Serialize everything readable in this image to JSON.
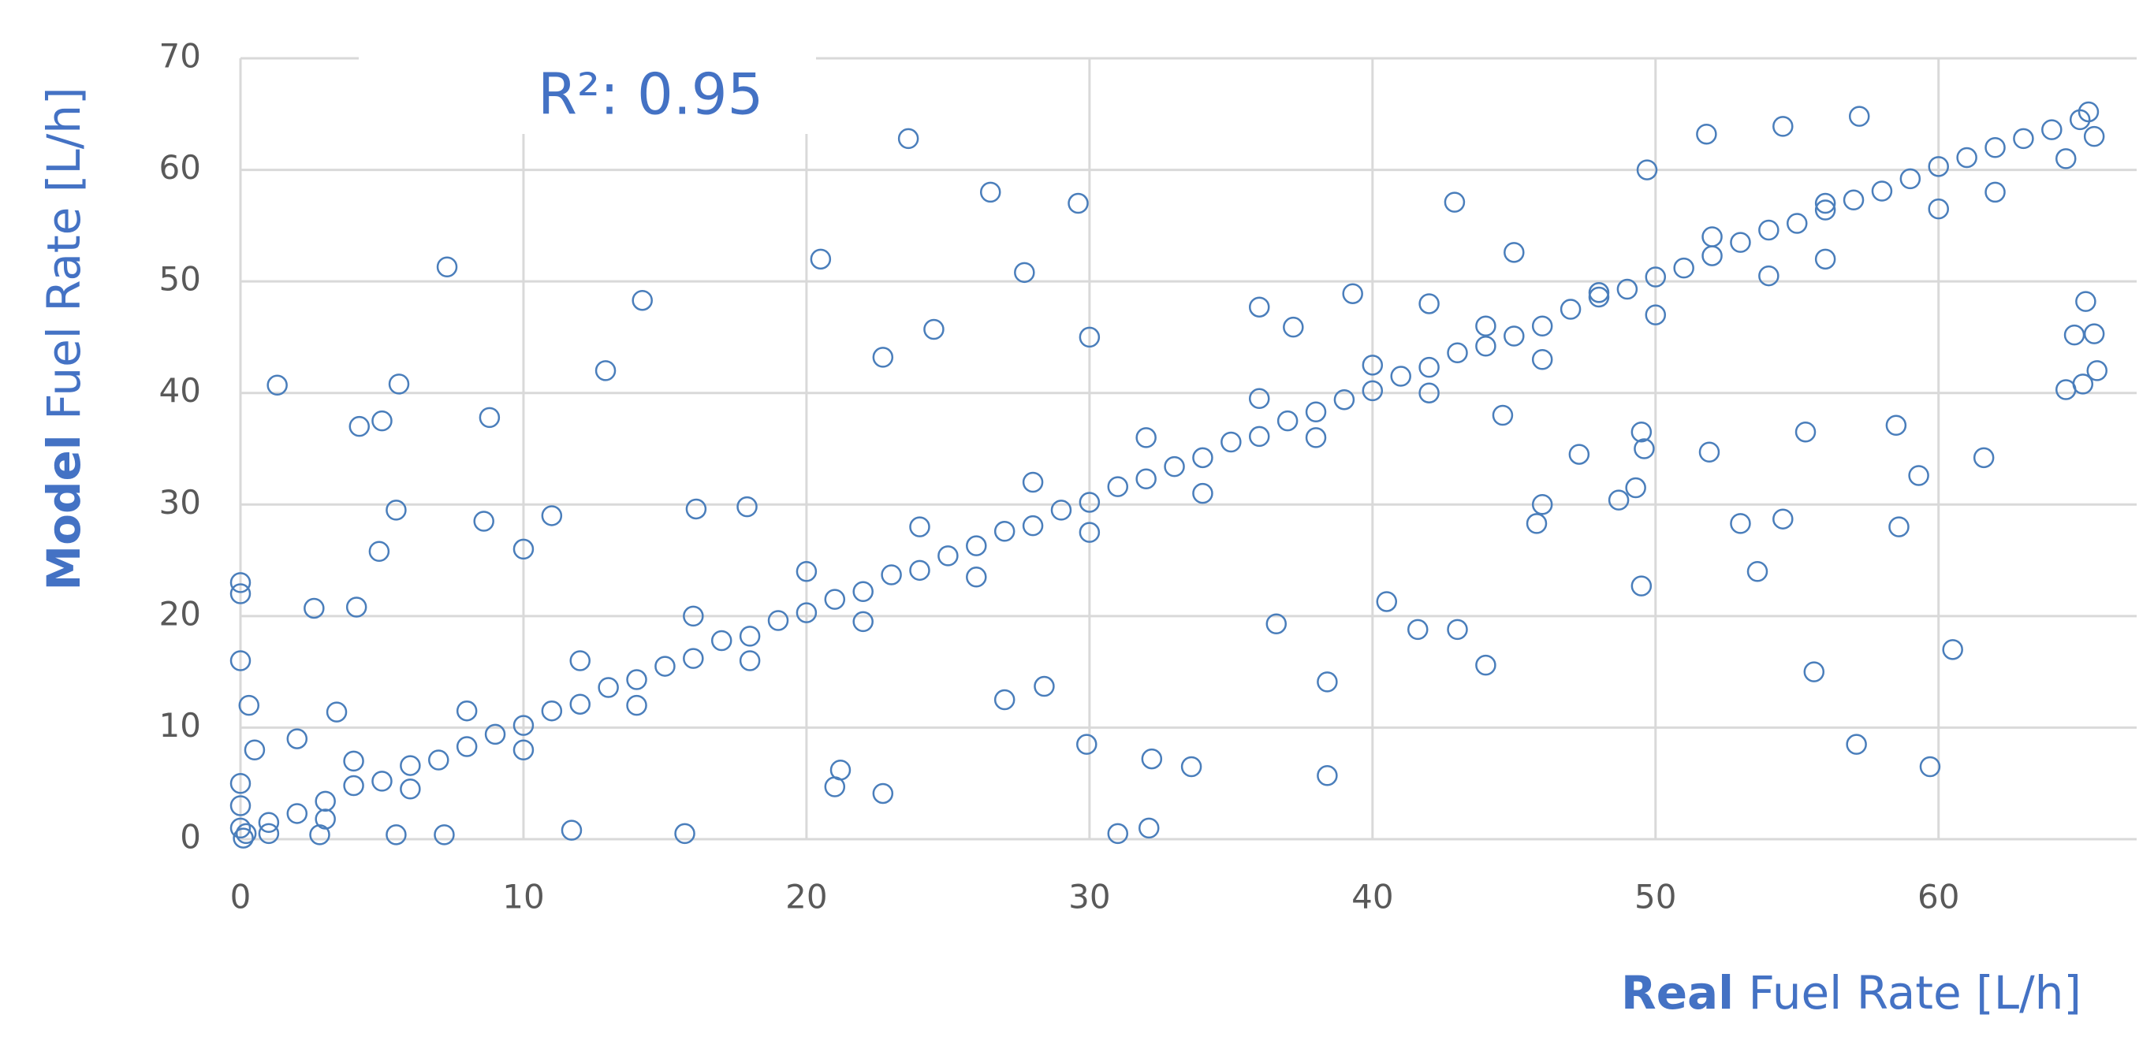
{
  "chart_data": {
    "type": "scatter",
    "annotation": "R²: 0.95",
    "xlabel_bold": "Real",
    "xlabel": "Fuel Rate [L/h]",
    "ylabel_bold": "Model",
    "ylabel": "Fuel Rate [L/h]",
    "color": "#4a7ebb",
    "grid": true,
    "xlim": [
      0,
      67
    ],
    "ylim": [
      0,
      70
    ],
    "xticks": [
      0,
      10,
      20,
      30,
      40,
      50,
      60
    ],
    "yticks": [
      0,
      10,
      20,
      30,
      40,
      50,
      60,
      70
    ],
    "x": [
      0,
      0,
      0,
      1.3,
      7.3,
      4.2,
      5,
      5.6,
      8.8,
      8.6,
      14.2,
      12.9,
      23.6,
      20.5,
      26.5,
      29.6,
      27.7,
      24.5,
      22.7,
      42.9,
      45,
      51.8,
      54.5,
      57.2,
      49.7,
      11.7,
      15.7,
      31,
      32.1,
      29.9,
      33.6,
      32.2,
      38.4,
      40.5,
      41.6,
      43,
      44,
      36.6,
      38.4,
      57.1,
      59.7,
      60.5,
      55.6,
      53.6,
      49.5,
      54.5,
      53,
      58.6,
      59.3,
      61.6,
      51.9,
      55.3,
      58.5,
      64.5,
      65.1,
      65.6,
      65.2,
      65.5,
      64.8,
      47.3,
      45.8,
      46,
      48.7,
      49.3,
      49.6,
      49.5,
      42,
      44.6,
      10,
      11,
      5.5,
      4.9,
      7.2,
      2.6,
      4.1,
      16.1,
      17.9,
      3.4,
      2,
      0,
      0,
      0,
      0.2,
      1,
      2.8,
      5.5,
      21,
      21.2,
      22.7,
      30,
      27,
      28.4,
      39.3,
      37.2,
      36,
      1,
      2,
      3,
      4,
      5,
      6,
      7,
      8,
      9,
      10,
      11,
      12,
      13,
      14,
      15,
      16,
      17,
      18,
      19,
      20,
      21,
      22,
      23,
      24,
      25,
      26,
      27,
      28,
      29,
      30,
      31,
      32,
      33,
      34,
      35,
      36,
      37,
      38,
      39,
      40,
      41,
      42,
      43,
      44,
      45,
      46,
      47,
      48,
      49,
      50,
      51,
      52,
      53,
      54,
      55,
      56,
      57,
      58,
      59,
      60,
      61,
      62,
      63,
      64,
      65,
      65.3,
      65.5,
      64.5,
      62,
      60,
      56,
      54,
      50,
      46,
      42,
      38,
      34,
      30,
      26,
      22,
      18,
      14,
      10,
      6,
      3,
      4,
      8,
      12,
      16,
      20,
      24,
      28,
      32,
      36,
      40,
      44,
      48,
      52,
      56,
      0.5,
      0.3,
      0.1
    ],
    "values": [
      23,
      22,
      16,
      40.7,
      51.3,
      37,
      37.5,
      40.8,
      37.8,
      28.5,
      48.3,
      42,
      62.8,
      52,
      58,
      57,
      50.8,
      45.7,
      43.2,
      57.1,
      52.6,
      63.2,
      63.9,
      64.8,
      60,
      0.8,
      0.5,
      0.5,
      1,
      8.5,
      6.5,
      7.2,
      5.7,
      21.3,
      18.8,
      18.8,
      15.6,
      19.3,
      14.1,
      8.5,
      6.5,
      17,
      15,
      24,
      22.7,
      28.7,
      28.3,
      28,
      32.6,
      34.2,
      34.7,
      36.5,
      37.1,
      40.3,
      40.8,
      42,
      48.2,
      45.3,
      45.2,
      34.5,
      28.3,
      30,
      30.4,
      31.5,
      35,
      36.5,
      48,
      38,
      26,
      29,
      29.5,
      25.8,
      0.4,
      20.7,
      20.8,
      29.6,
      29.8,
      11.4,
      9,
      5,
      3,
      1,
      0.5,
      0.5,
      0.4,
      0.4,
      4.7,
      6.2,
      4.1,
      45,
      12.5,
      13.7,
      48.9,
      45.9,
      47.7,
      1.5,
      2.3,
      3.4,
      4.8,
      5.2,
      6.6,
      7.1,
      8.3,
      9.4,
      10.2,
      11.5,
      12.1,
      13.6,
      14.3,
      15.5,
      16.2,
      17.8,
      18.2,
      19.6,
      20.3,
      21.5,
      22.2,
      23.7,
      24.1,
      25.4,
      26.3,
      27.6,
      28.1,
      29.5,
      30.2,
      31.6,
      32.3,
      33.4,
      34.2,
      35.6,
      36.1,
      37.5,
      38.3,
      39.4,
      40.2,
      41.5,
      42.3,
      43.6,
      44.2,
      45.1,
      46,
      47.5,
      48.6,
      49.3,
      50.4,
      51.2,
      52.3,
      53.5,
      54.6,
      55.2,
      56.4,
      57.3,
      58.1,
      59.2,
      60.3,
      61.1,
      62,
      62.8,
      63.6,
      64.5,
      65.2,
      63,
      61,
      58,
      56.5,
      52,
      50.5,
      47,
      43,
      40,
      36,
      31,
      27.5,
      23.5,
      19.5,
      16,
      12,
      8,
      4.5,
      1.8,
      7,
      11.5,
      16,
      20,
      24,
      28,
      32,
      36,
      39.5,
      42.5,
      46,
      49,
      54,
      57,
      8,
      12,
      0.1
    ]
  }
}
